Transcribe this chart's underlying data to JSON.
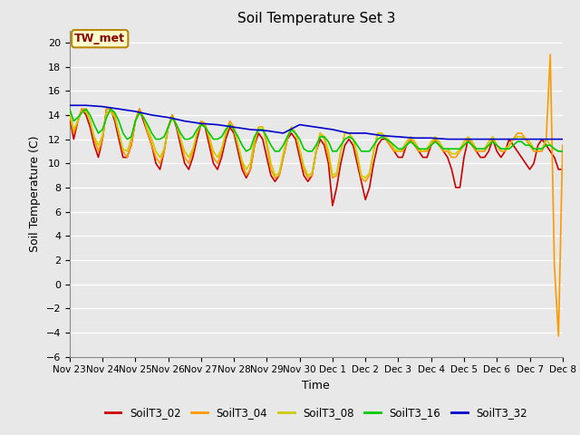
{
  "title": "Soil Temperature Set 3",
  "xlabel": "Time",
  "ylabel": "Soil Temperature (C)",
  "ylim": [
    -6,
    21
  ],
  "yticks": [
    -6,
    -4,
    -2,
    0,
    2,
    4,
    6,
    8,
    10,
    12,
    14,
    16,
    18,
    20
  ],
  "background_color": "#e8e8e8",
  "plot_bg_color": "#e8e8e8",
  "grid_color": "white",
  "annotation_text": "TW_met",
  "annotation_color": "#8b0000",
  "annotation_bg": "#ffffcc",
  "legend_entries": [
    "SoilT3_02",
    "SoilT3_04",
    "SoilT3_08",
    "SoilT3_16",
    "SoilT3_32"
  ],
  "line_colors": [
    "#cc0000",
    "#ff9900",
    "#cccc00",
    "#00cc00",
    "#0000cc"
  ],
  "series": {
    "SoilT3_02": {
      "x": [
        0,
        0.125,
        0.25,
        0.375,
        0.5,
        0.625,
        0.75,
        0.875,
        1.0,
        1.125,
        1.25,
        1.375,
        1.5,
        1.625,
        1.75,
        1.875,
        2.0,
        2.125,
        2.25,
        2.375,
        2.5,
        2.625,
        2.75,
        2.875,
        3.0,
        3.125,
        3.25,
        3.375,
        3.5,
        3.625,
        3.75,
        3.875,
        4.0,
        4.125,
        4.25,
        4.375,
        4.5,
        4.625,
        4.75,
        4.875,
        5.0,
        5.125,
        5.25,
        5.375,
        5.5,
        5.625,
        5.75,
        5.875,
        6.0,
        6.125,
        6.25,
        6.375,
        6.5,
        6.625,
        6.75,
        6.875,
        7.0,
        7.125,
        7.25,
        7.375,
        7.5,
        7.625,
        7.75,
        7.875,
        8.0,
        8.125,
        8.25,
        8.375,
        8.5,
        8.625,
        8.75,
        8.875,
        9.0,
        9.125,
        9.25,
        9.375,
        9.5,
        9.625,
        9.75,
        9.875,
        10.0,
        10.125,
        10.25,
        10.375,
        10.5,
        10.625,
        10.75,
        10.875,
        11.0,
        11.125,
        11.25,
        11.375,
        11.5,
        11.625,
        11.75,
        11.875,
        12.0,
        12.125,
        12.25,
        12.375,
        12.5,
        12.625,
        12.75,
        12.875,
        13.0,
        13.125,
        13.25,
        13.375,
        13.5,
        13.625,
        13.75,
        13.875,
        14.0,
        14.125,
        14.25,
        14.375,
        14.5,
        14.625,
        14.75,
        14.875,
        15.0
      ],
      "y": [
        13.8,
        12.0,
        13.5,
        14.5,
        14.0,
        13.0,
        11.5,
        10.5,
        12.0,
        14.5,
        14.5,
        13.5,
        12.0,
        10.5,
        10.5,
        11.5,
        13.5,
        14.5,
        13.5,
        12.5,
        11.5,
        10.0,
        9.5,
        11.0,
        13.0,
        14.0,
        13.0,
        11.5,
        10.0,
        9.5,
        10.5,
        12.0,
        13.3,
        13.0,
        11.5,
        10.0,
        9.5,
        10.5,
        12.0,
        13.0,
        12.5,
        11.0,
        9.5,
        8.8,
        9.5,
        11.5,
        12.5,
        12.0,
        10.5,
        9.0,
        8.5,
        9.0,
        10.5,
        12.0,
        12.5,
        12.0,
        10.5,
        9.0,
        8.5,
        9.0,
        11.0,
        12.0,
        11.5,
        10.0,
        6.5,
        8.0,
        10.0,
        11.5,
        12.0,
        11.5,
        10.0,
        8.5,
        7.0,
        8.0,
        10.0,
        11.5,
        12.0,
        12.0,
        11.5,
        11.0,
        10.5,
        10.5,
        11.5,
        12.0,
        11.5,
        11.0,
        10.5,
        10.5,
        11.5,
        12.0,
        11.5,
        11.0,
        10.5,
        9.5,
        8.0,
        8.0,
        10.5,
        12.0,
        11.5,
        11.0,
        10.5,
        10.5,
        11.0,
        12.0,
        11.0,
        10.5,
        11.0,
        12.0,
        11.5,
        11.0,
        10.5,
        10.0,
        9.5,
        10.0,
        11.5,
        12.0,
        11.5,
        11.0,
        10.5,
        9.5,
        9.5
      ]
    },
    "SoilT3_04": {
      "x": [
        0,
        0.125,
        0.25,
        0.375,
        0.5,
        0.625,
        0.75,
        0.875,
        1.0,
        1.125,
        1.25,
        1.375,
        1.5,
        1.625,
        1.75,
        1.875,
        2.0,
        2.125,
        2.25,
        2.375,
        2.5,
        2.625,
        2.75,
        2.875,
        3.0,
        3.125,
        3.25,
        3.375,
        3.5,
        3.625,
        3.75,
        3.875,
        4.0,
        4.125,
        4.25,
        4.375,
        4.5,
        4.625,
        4.75,
        4.875,
        5.0,
        5.125,
        5.25,
        5.375,
        5.5,
        5.625,
        5.75,
        5.875,
        6.0,
        6.125,
        6.25,
        6.375,
        6.5,
        6.625,
        6.75,
        6.875,
        7.0,
        7.125,
        7.25,
        7.375,
        7.5,
        7.625,
        7.75,
        7.875,
        8.0,
        8.125,
        8.25,
        8.375,
        8.5,
        8.625,
        8.75,
        8.875,
        9.0,
        9.125,
        9.25,
        9.375,
        9.5,
        9.625,
        9.75,
        9.875,
        10.0,
        10.125,
        10.25,
        10.375,
        10.5,
        10.625,
        10.75,
        10.875,
        11.0,
        11.125,
        11.25,
        11.375,
        11.5,
        11.625,
        11.75,
        11.875,
        12.0,
        12.125,
        12.25,
        12.375,
        12.5,
        12.625,
        12.75,
        12.875,
        13.0,
        13.125,
        13.25,
        13.375,
        13.5,
        13.625,
        13.75,
        13.875,
        14.0,
        14.125,
        14.25,
        14.375,
        14.5,
        14.625,
        14.75,
        14.875,
        15.0
      ],
      "y": [
        14.0,
        12.5,
        13.5,
        14.5,
        14.5,
        13.5,
        12.0,
        11.0,
        12.0,
        14.5,
        14.5,
        14.0,
        12.5,
        11.0,
        10.5,
        11.5,
        13.5,
        14.5,
        13.8,
        12.5,
        11.5,
        10.5,
        10.0,
        11.0,
        13.0,
        14.0,
        13.2,
        12.0,
        10.5,
        10.0,
        11.0,
        12.5,
        13.5,
        13.3,
        12.0,
        10.5,
        10.0,
        11.0,
        12.5,
        13.5,
        13.0,
        11.5,
        10.0,
        9.0,
        9.5,
        11.5,
        13.0,
        13.0,
        11.5,
        9.5,
        8.8,
        9.0,
        10.5,
        12.0,
        13.0,
        12.5,
        11.0,
        9.5,
        8.8,
        9.0,
        11.0,
        12.5,
        12.0,
        10.5,
        8.8,
        9.0,
        11.0,
        12.5,
        12.5,
        12.0,
        10.5,
        8.8,
        8.5,
        9.0,
        11.0,
        12.5,
        12.5,
        12.0,
        11.5,
        11.0,
        11.0,
        11.0,
        11.5,
        12.0,
        11.5,
        11.0,
        11.0,
        11.0,
        11.5,
        12.0,
        11.5,
        11.0,
        11.0,
        10.5,
        10.5,
        11.0,
        11.5,
        12.0,
        11.5,
        11.0,
        11.0,
        11.0,
        11.5,
        12.0,
        11.5,
        11.0,
        11.0,
        11.5,
        12.0,
        12.5,
        12.5,
        12.0,
        11.5,
        11.0,
        11.0,
        11.0,
        12.0,
        19.0,
        1.5,
        -4.3,
        11.5
      ]
    },
    "SoilT3_08": {
      "x": [
        0,
        0.125,
        0.25,
        0.375,
        0.5,
        0.625,
        0.75,
        0.875,
        1.0,
        1.125,
        1.25,
        1.375,
        1.5,
        1.625,
        1.75,
        1.875,
        2.0,
        2.125,
        2.25,
        2.375,
        2.5,
        2.625,
        2.75,
        2.875,
        3.0,
        3.125,
        3.25,
        3.375,
        3.5,
        3.625,
        3.75,
        3.875,
        4.0,
        4.125,
        4.25,
        4.375,
        4.5,
        4.625,
        4.75,
        4.875,
        5.0,
        5.125,
        5.25,
        5.375,
        5.5,
        5.625,
        5.75,
        5.875,
        6.0,
        6.125,
        6.25,
        6.375,
        6.5,
        6.625,
        6.75,
        6.875,
        7.0,
        7.125,
        7.25,
        7.375,
        7.5,
        7.625,
        7.75,
        7.875,
        8.0,
        8.125,
        8.25,
        8.375,
        8.5,
        8.625,
        8.75,
        8.875,
        9.0,
        9.125,
        9.25,
        9.375,
        9.5,
        9.625,
        9.75,
        9.875,
        10.0,
        10.125,
        10.25,
        10.375,
        10.5,
        10.625,
        10.75,
        10.875,
        11.0,
        11.125,
        11.25,
        11.375,
        11.5,
        11.625,
        11.75,
        11.875,
        12.0,
        12.125,
        12.25,
        12.375,
        12.5,
        12.625,
        12.75,
        12.875,
        13.0,
        13.125,
        13.25,
        13.375,
        13.5,
        13.625,
        13.75,
        13.875,
        14.0,
        14.125,
        14.25,
        14.375,
        14.5,
        14.625,
        14.75,
        14.875,
        15.0
      ],
      "y": [
        14.2,
        12.8,
        13.5,
        14.3,
        14.3,
        13.5,
        12.2,
        11.5,
        12.3,
        14.2,
        14.3,
        13.8,
        12.5,
        11.2,
        11.0,
        12.0,
        13.5,
        14.2,
        13.8,
        12.8,
        12.0,
        11.0,
        10.5,
        11.2,
        13.0,
        13.8,
        13.2,
        12.0,
        11.0,
        10.5,
        11.2,
        12.5,
        13.3,
        13.2,
        12.2,
        11.0,
        10.5,
        11.2,
        12.5,
        13.2,
        12.8,
        11.5,
        10.2,
        9.5,
        10.0,
        12.0,
        13.0,
        13.0,
        11.8,
        10.0,
        9.0,
        9.2,
        10.8,
        12.2,
        13.0,
        12.5,
        11.2,
        9.8,
        9.0,
        9.2,
        11.0,
        12.5,
        12.2,
        11.0,
        9.0,
        9.2,
        11.0,
        12.5,
        12.5,
        12.0,
        10.8,
        9.0,
        8.8,
        9.2,
        11.0,
        12.5,
        12.5,
        12.2,
        11.8,
        11.2,
        11.0,
        11.2,
        11.8,
        12.2,
        11.8,
        11.2,
        11.0,
        11.2,
        11.8,
        12.2,
        11.8,
        11.2,
        11.2,
        10.8,
        10.8,
        11.2,
        11.8,
        12.2,
        11.8,
        11.2,
        11.2,
        11.2,
        11.8,
        12.2,
        11.5,
        11.2,
        11.2,
        11.5,
        12.0,
        12.2,
        12.2,
        12.0,
        11.8,
        11.2,
        11.2,
        11.2,
        12.0,
        11.5,
        11.2,
        11.0,
        11.0
      ]
    },
    "SoilT3_16": {
      "x": [
        0,
        0.125,
        0.25,
        0.375,
        0.5,
        0.625,
        0.75,
        0.875,
        1.0,
        1.125,
        1.25,
        1.375,
        1.5,
        1.625,
        1.75,
        1.875,
        2.0,
        2.125,
        2.25,
        2.375,
        2.5,
        2.625,
        2.75,
        2.875,
        3.0,
        3.125,
        3.25,
        3.375,
        3.5,
        3.625,
        3.75,
        3.875,
        4.0,
        4.125,
        4.25,
        4.375,
        4.5,
        4.625,
        4.75,
        4.875,
        5.0,
        5.125,
        5.25,
        5.375,
        5.5,
        5.625,
        5.75,
        5.875,
        6.0,
        6.125,
        6.25,
        6.375,
        6.5,
        6.625,
        6.75,
        6.875,
        7.0,
        7.125,
        7.25,
        7.375,
        7.5,
        7.625,
        7.75,
        7.875,
        8.0,
        8.125,
        8.25,
        8.375,
        8.5,
        8.625,
        8.75,
        8.875,
        9.0,
        9.125,
        9.25,
        9.375,
        9.5,
        9.625,
        9.75,
        9.875,
        10.0,
        10.125,
        10.25,
        10.375,
        10.5,
        10.625,
        10.75,
        10.875,
        11.0,
        11.125,
        11.25,
        11.375,
        11.5,
        11.625,
        11.75,
        11.875,
        12.0,
        12.125,
        12.25,
        12.375,
        12.5,
        12.625,
        12.75,
        12.875,
        13.0,
        13.125,
        13.25,
        13.375,
        13.5,
        13.625,
        13.75,
        13.875,
        14.0,
        14.125,
        14.25,
        14.375,
        14.5,
        14.625,
        14.75,
        14.875,
        15.0
      ],
      "y": [
        14.5,
        13.5,
        13.8,
        14.2,
        14.5,
        14.0,
        13.2,
        12.5,
        12.8,
        13.8,
        14.5,
        14.2,
        13.5,
        12.5,
        12.0,
        12.2,
        13.5,
        14.2,
        13.8,
        13.2,
        12.5,
        12.0,
        12.0,
        12.2,
        13.0,
        13.8,
        13.2,
        12.5,
        12.0,
        12.0,
        12.2,
        12.8,
        13.2,
        13.0,
        12.5,
        12.0,
        12.0,
        12.2,
        12.8,
        13.2,
        12.8,
        12.2,
        11.5,
        11.0,
        11.2,
        12.2,
        12.8,
        12.8,
        12.2,
        11.5,
        11.0,
        11.0,
        11.5,
        12.2,
        12.8,
        12.5,
        12.0,
        11.2,
        11.0,
        11.0,
        11.5,
        12.2,
        12.2,
        11.8,
        11.0,
        11.0,
        11.5,
        12.0,
        12.2,
        12.0,
        11.5,
        11.0,
        11.0,
        11.0,
        11.5,
        12.0,
        12.2,
        12.0,
        11.8,
        11.5,
        11.2,
        11.2,
        11.5,
        11.8,
        11.5,
        11.2,
        11.2,
        11.2,
        11.5,
        11.8,
        11.5,
        11.2,
        11.2,
        11.2,
        11.2,
        11.2,
        11.5,
        11.8,
        11.5,
        11.2,
        11.2,
        11.2,
        11.5,
        11.8,
        11.5,
        11.2,
        11.2,
        11.2,
        11.5,
        11.8,
        11.8,
        11.5,
        11.5,
        11.2,
        11.2,
        11.2,
        11.5,
        11.5,
        11.2,
        11.0,
        11.0
      ]
    },
    "SoilT3_32": {
      "x": [
        0,
        0.5,
        1.0,
        1.5,
        2.0,
        2.5,
        3.0,
        3.5,
        4.0,
        4.5,
        5.0,
        5.5,
        6.0,
        6.5,
        7.0,
        7.5,
        8.0,
        8.5,
        9.0,
        9.5,
        10.0,
        10.5,
        11.0,
        11.5,
        12.0,
        12.5,
        13.0,
        13.5,
        14.0,
        14.5,
        15.0
      ],
      "y": [
        14.8,
        14.8,
        14.7,
        14.5,
        14.3,
        14.0,
        13.8,
        13.5,
        13.3,
        13.2,
        13.0,
        12.8,
        12.7,
        12.5,
        13.2,
        13.0,
        12.8,
        12.5,
        12.5,
        12.3,
        12.2,
        12.1,
        12.1,
        12.0,
        12.0,
        12.0,
        12.0,
        12.0,
        12.0,
        12.0,
        12.0
      ]
    }
  },
  "x_tick_labels": [
    "Nov 23",
    "Nov 24",
    "Nov 25",
    "Nov 26",
    "Nov 27",
    "Nov 28",
    "Nov 29",
    "Nov 30",
    "Dec 1",
    "Dec 2",
    "Dec 3",
    "Dec 4",
    "Dec 5",
    "Dec 6",
    "Dec 7",
    "Dec 8"
  ],
  "x_tick_positions": [
    0,
    1,
    2,
    3,
    4,
    5,
    6,
    7,
    8,
    9,
    10,
    11,
    12,
    13,
    14,
    15
  ]
}
